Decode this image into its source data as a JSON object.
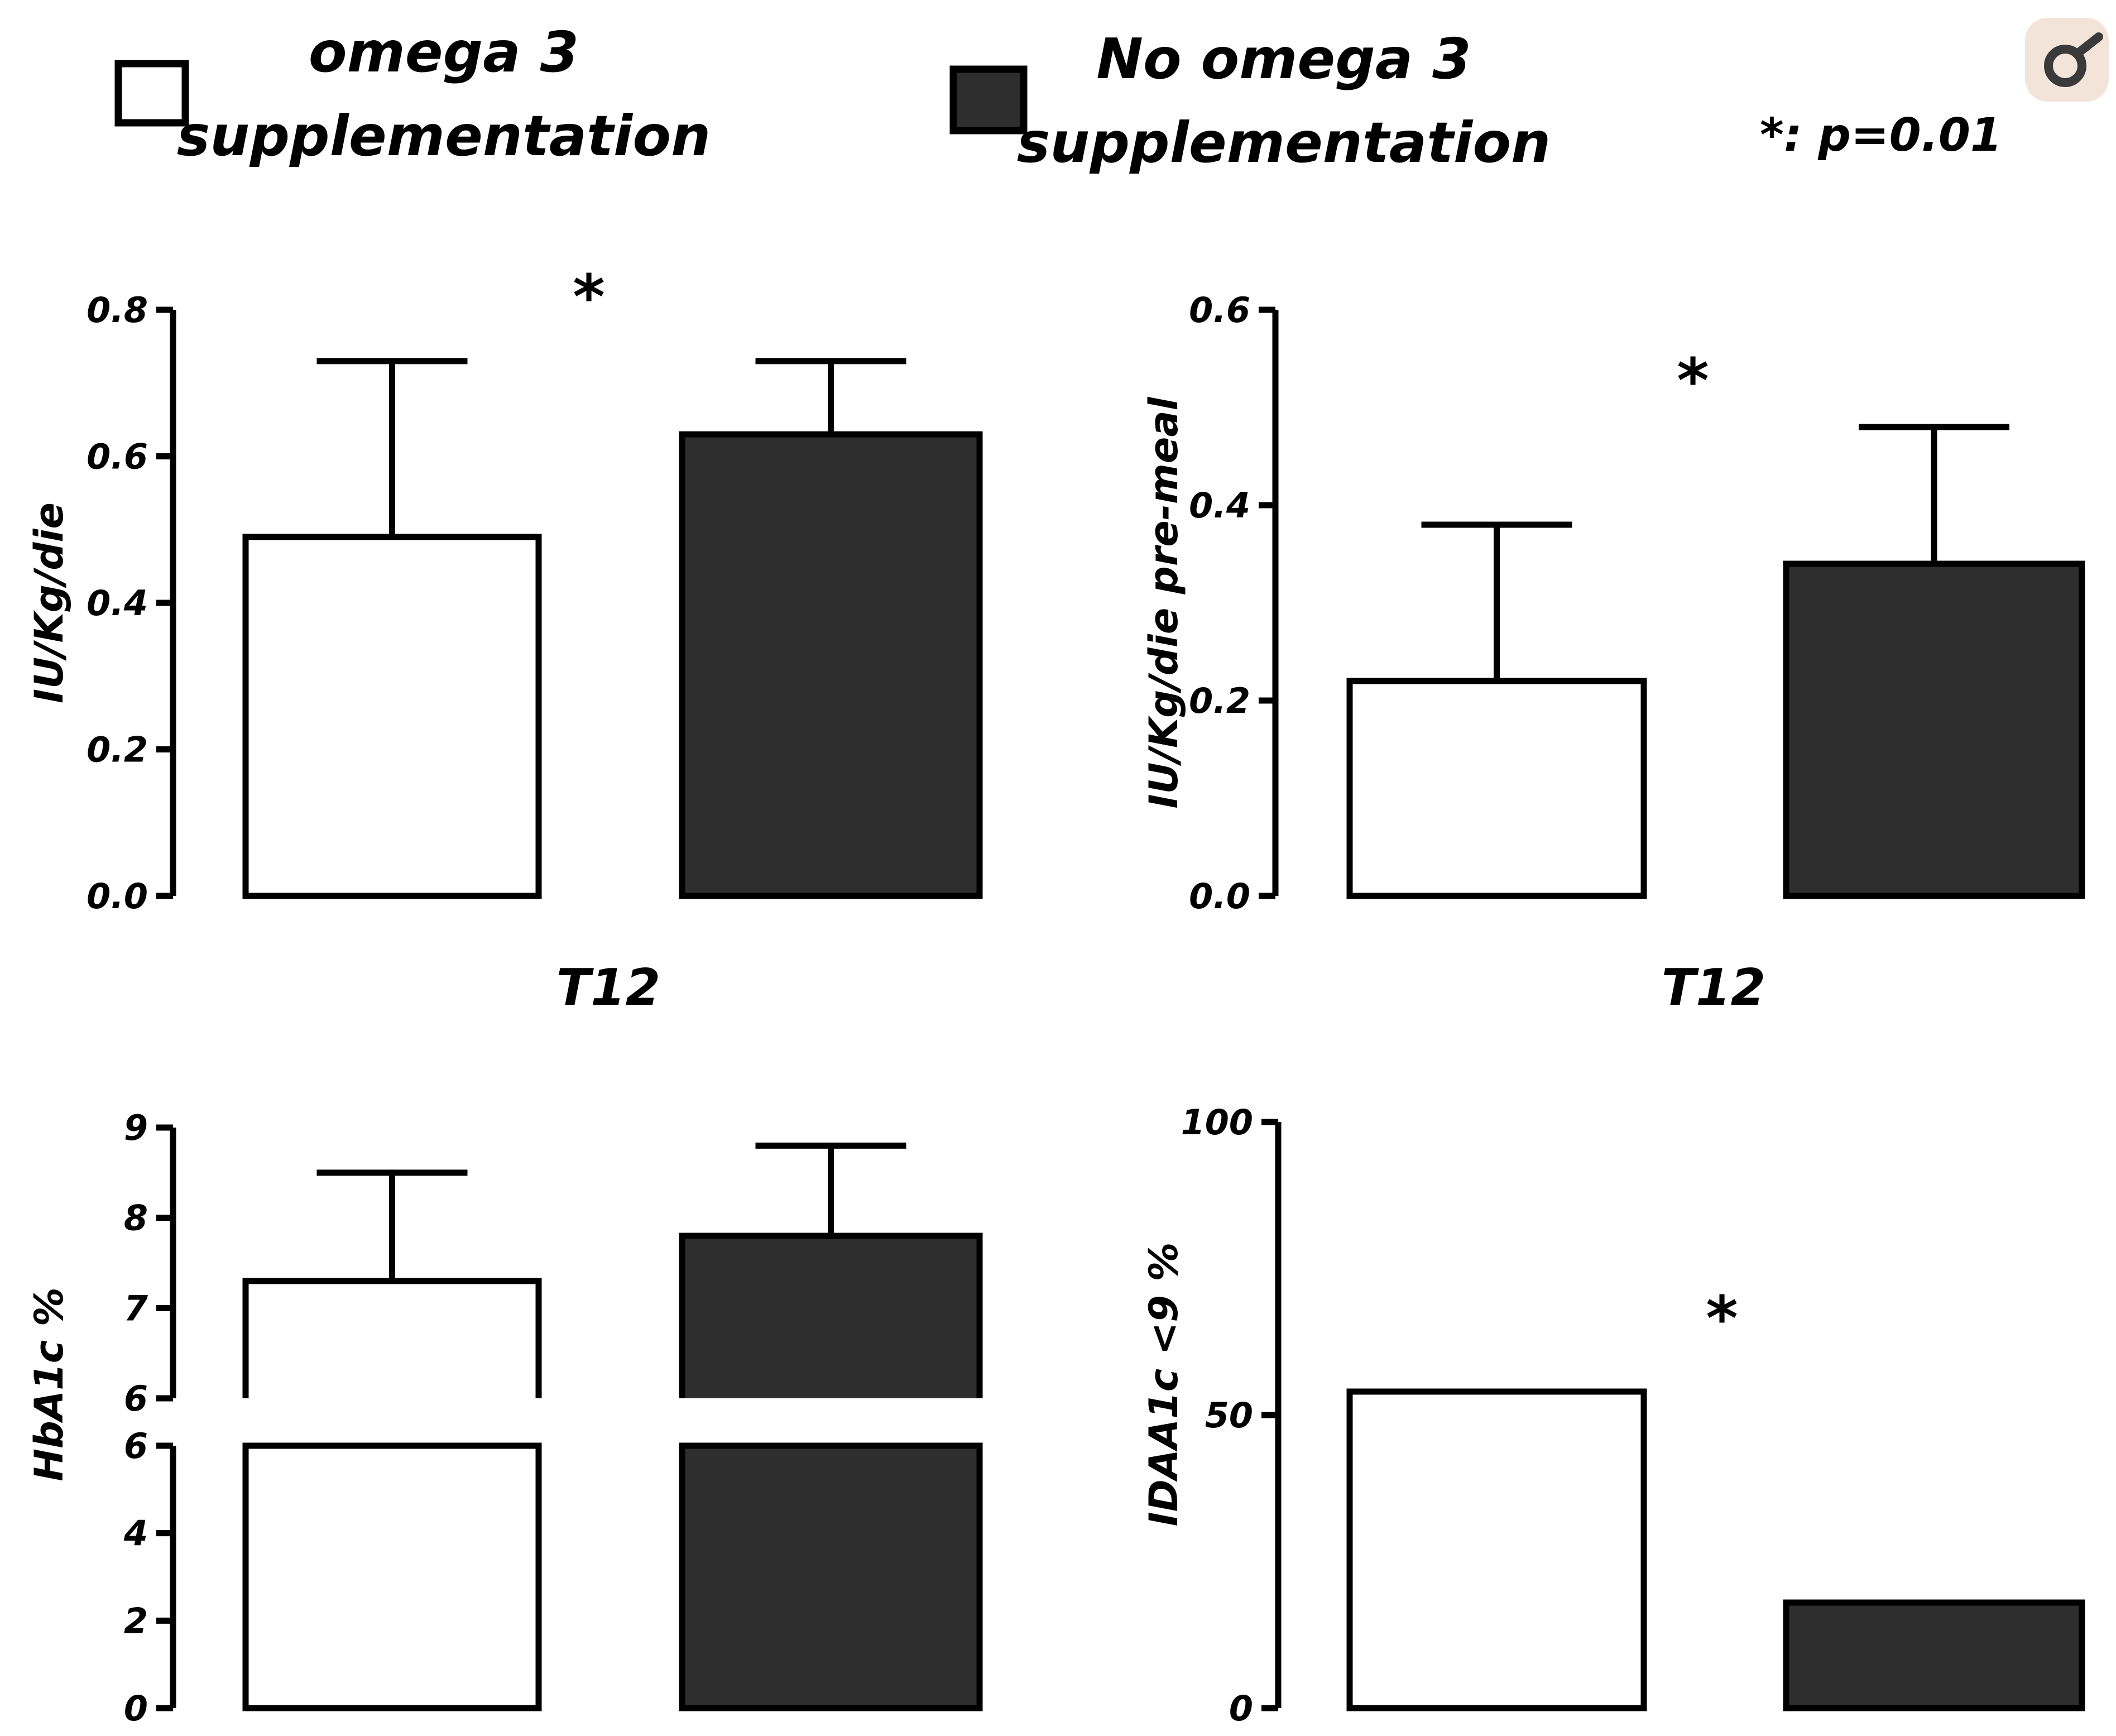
{
  "legend": {
    "items": [
      {
        "line1": "omega 3",
        "line2": "supplementation",
        "fill": "#ffffff"
      },
      {
        "line1": "No omega 3",
        "line2": "supplementation",
        "fill": "#2e2e2e"
      }
    ],
    "note": "*: p=0.01"
  },
  "corner_icon": "lens-icon",
  "colors": {
    "omega": "#ffffff",
    "no_omega": "#2e2e2e",
    "stroke": "#000000",
    "icon_bg": "#f3e4da"
  },
  "chart_data": [
    {
      "type": "bar",
      "title": "",
      "categories": [
        "omega 3 supplementation",
        "No omega 3 supplementation"
      ],
      "values": [
        0.49,
        0.63
      ],
      "errors": [
        0.24,
        0.1
      ],
      "ylabel": "IU/Kg/die",
      "xlabel": "T12",
      "ylim": [
        0,
        0.8
      ],
      "yticks": [
        "0.0",
        "0.2",
        "0.4",
        "0.6",
        "0.8"
      ],
      "significance": "*"
    },
    {
      "type": "bar",
      "title": "",
      "categories": [
        "omega 3 supplementation",
        "No omega 3 supplementation"
      ],
      "values": [
        0.22,
        0.34
      ],
      "errors": [
        0.16,
        0.14
      ],
      "ylabel": "IU/Kg/die pre-meal",
      "xlabel": "T12",
      "ylim": [
        0,
        0.6
      ],
      "yticks": [
        "0.0",
        "0.2",
        "0.4",
        "0.6"
      ],
      "significance": "*"
    },
    {
      "type": "bar",
      "title": "",
      "categories": [
        "omega 3 supplementation",
        "No omega 3 supplementation"
      ],
      "values": [
        7.3,
        7.8
      ],
      "errors": [
        1.2,
        1.0
      ],
      "ylabel": "HbA1c %",
      "xlabel": "",
      "axis_break": true,
      "ylim_lower": [
        0,
        6
      ],
      "ylim_upper": [
        6,
        9
      ],
      "yticks_lower": [
        "0",
        "2",
        "4",
        "6"
      ],
      "yticks_upper": [
        "6",
        "7",
        "8",
        "9"
      ],
      "significance": ""
    },
    {
      "type": "bar",
      "title": "",
      "categories": [
        "omega 3 supplementation",
        "No omega 3 supplementation"
      ],
      "values": [
        54,
        18
      ],
      "errors": [
        null,
        null
      ],
      "ylabel": "IDAA1c <9 %",
      "xlabel": "",
      "ylim": [
        0,
        100
      ],
      "yticks": [
        "0",
        "50",
        "100"
      ],
      "significance": "*"
    }
  ]
}
